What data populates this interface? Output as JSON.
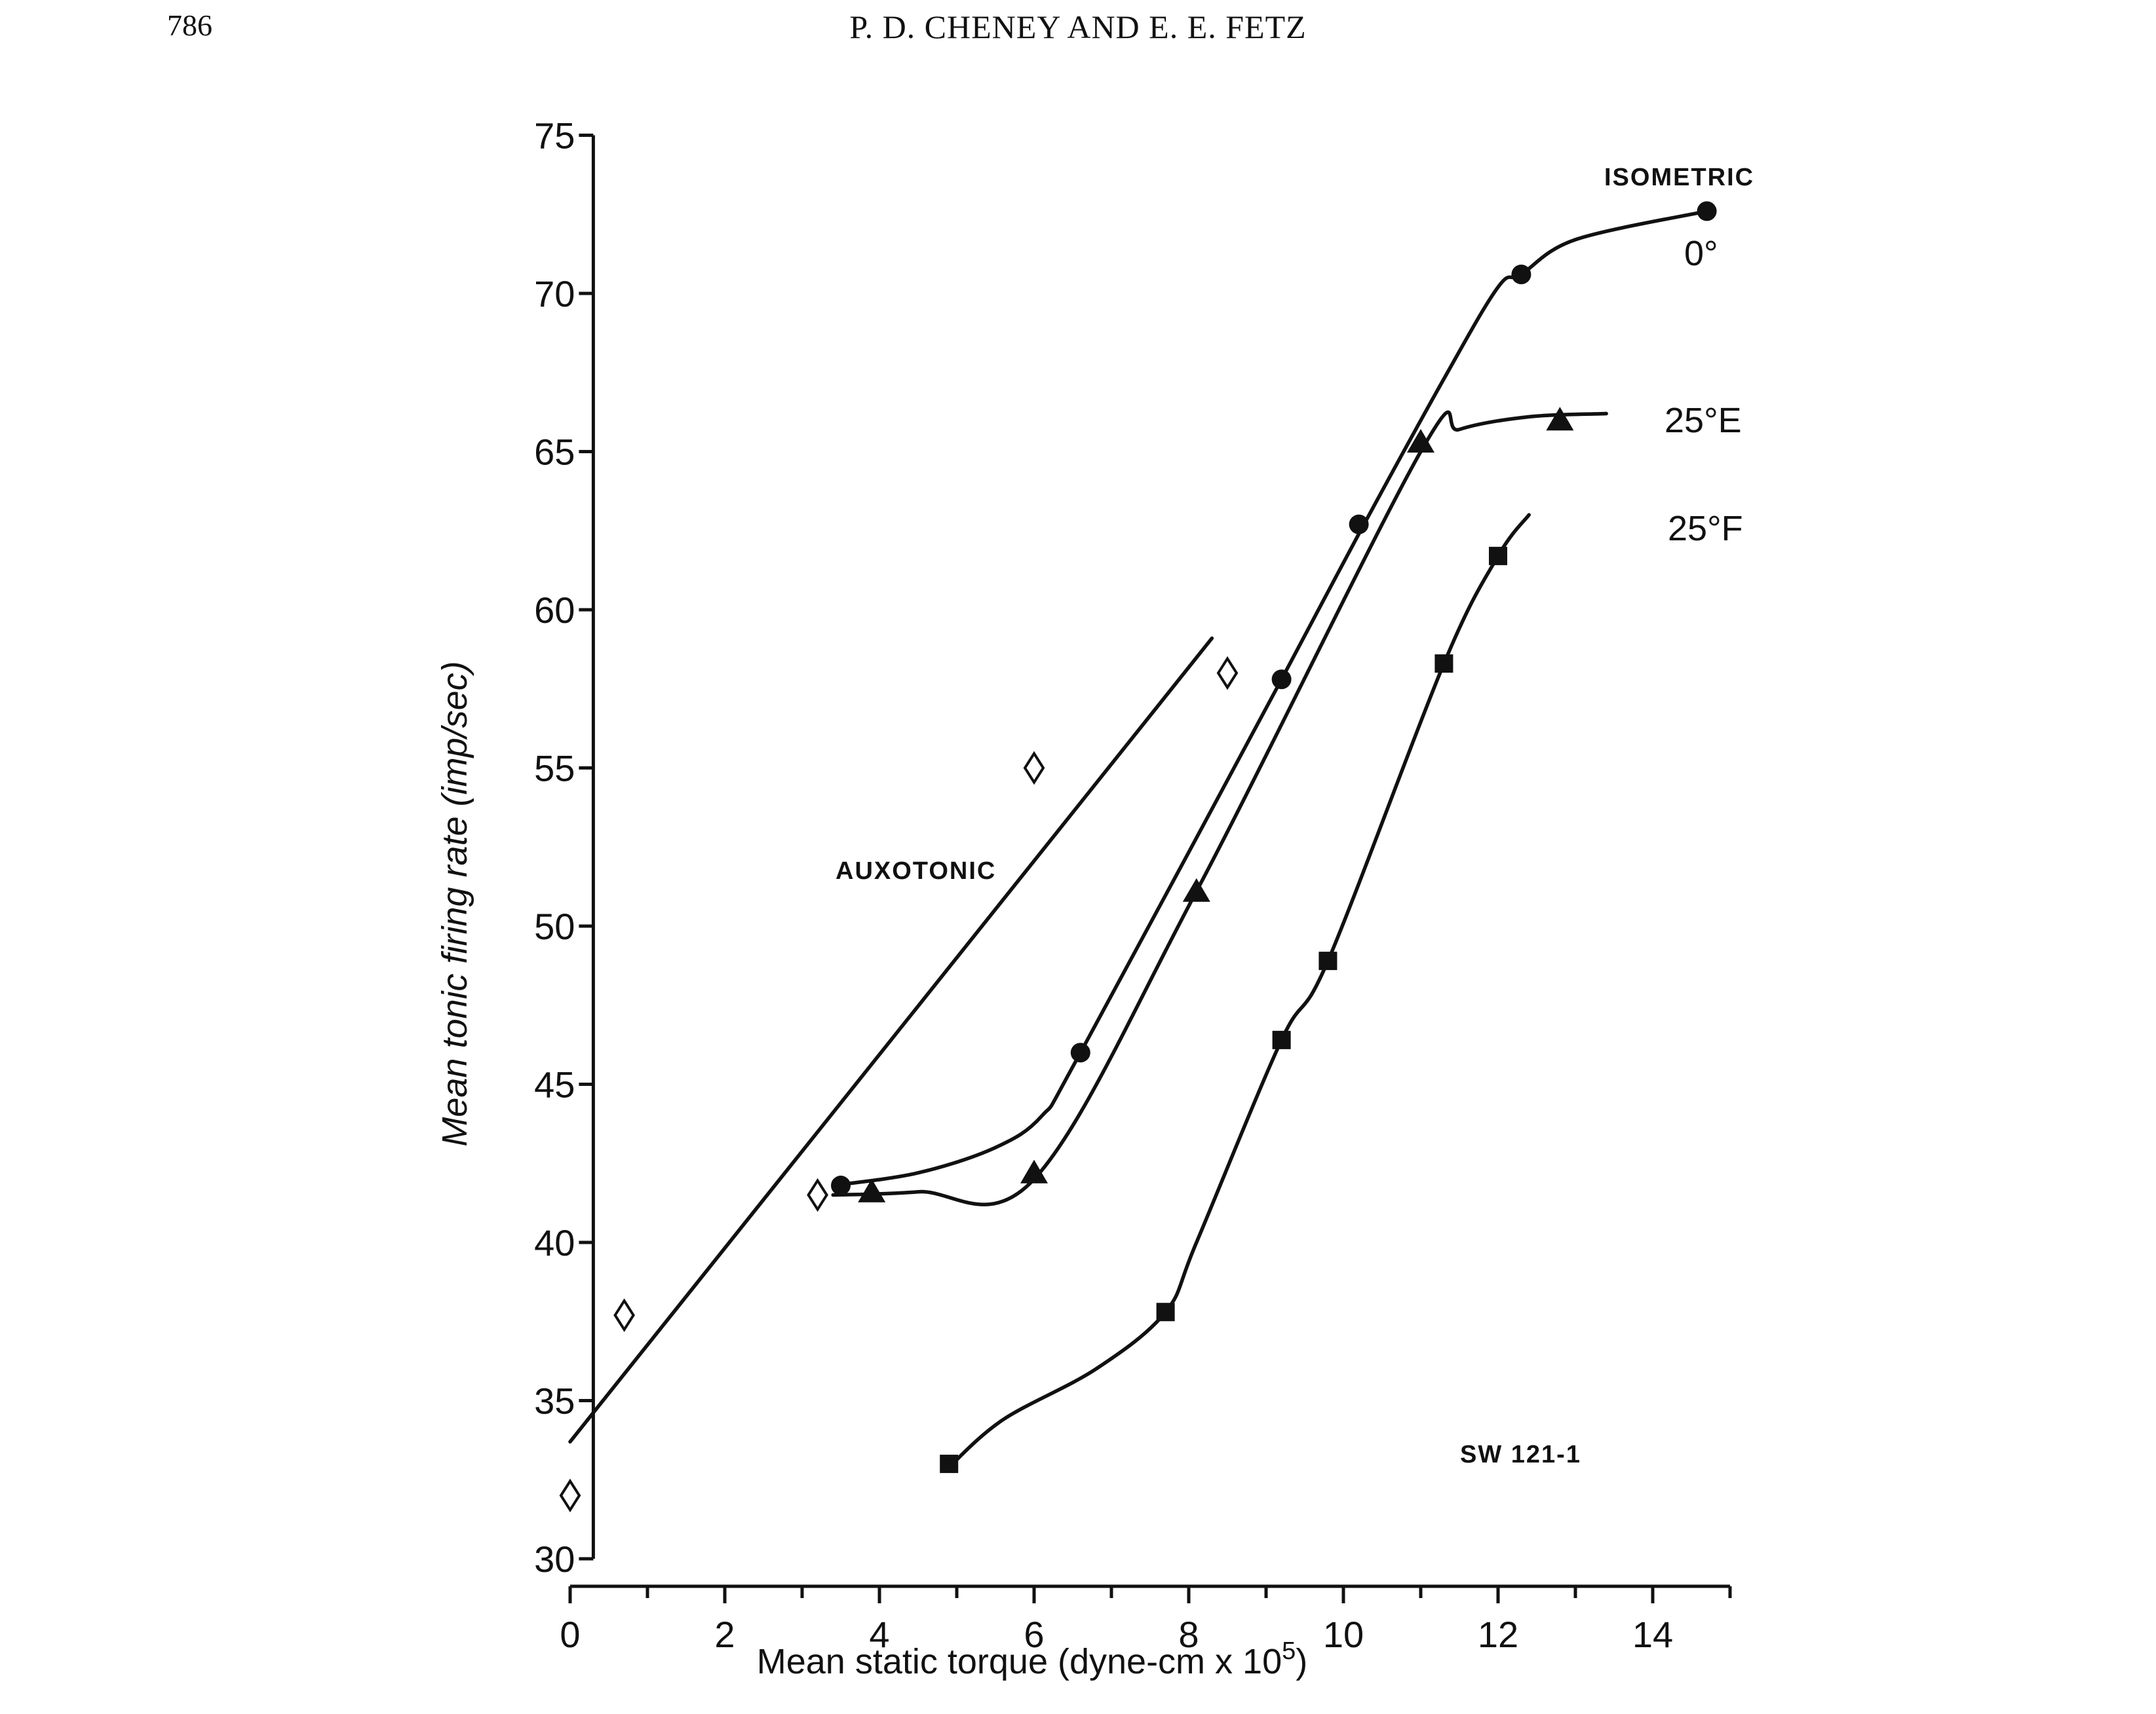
{
  "header": {
    "page_number": "786",
    "running_head": "P. D. CHENEY AND E. E. FETZ"
  },
  "chart_data": {
    "type": "scatter",
    "title": "",
    "xlabel": "Mean static torque   (dyne-cm x 10",
    "xlabel_superscript": "5",
    "xlabel_close": ")",
    "ylabel": "Mean tonic firing rate   (imp/sec)",
    "xlim": [
      0,
      15
    ],
    "ylim": [
      30,
      75
    ],
    "x_ticks": [
      0,
      2,
      4,
      6,
      8,
      10,
      12,
      14
    ],
    "y_ticks": [
      30,
      35,
      40,
      45,
      50,
      55,
      60,
      65,
      70,
      75
    ],
    "grid": false,
    "annotations": {
      "isometric": "ISOMETRIC",
      "auxotonic": "AUXOTONIC",
      "specimen": "SW 121-1"
    },
    "series": [
      {
        "name": "0°",
        "marker": "circle",
        "color": "#111111",
        "points": [
          [
            3.5,
            41.8
          ],
          [
            6.6,
            46.0
          ],
          [
            9.2,
            57.8
          ],
          [
            10.2,
            62.7
          ],
          [
            12.3,
            70.6
          ],
          [
            14.7,
            72.6
          ]
        ],
        "curve": [
          [
            3.4,
            41.8
          ],
          [
            4.5,
            42.2
          ],
          [
            5.5,
            43.0
          ],
          [
            6.1,
            44.0
          ],
          [
            6.6,
            46.0
          ],
          [
            9.2,
            57.8
          ],
          [
            10.2,
            62.4
          ],
          [
            11.3,
            67.3
          ],
          [
            12.0,
            70.2
          ],
          [
            12.3,
            70.6
          ],
          [
            13.0,
            71.7
          ],
          [
            14.7,
            72.6
          ]
        ]
      },
      {
        "name": "25°E",
        "marker": "triangle",
        "color": "#111111",
        "points": [
          [
            3.9,
            41.6
          ],
          [
            6.0,
            42.2
          ],
          [
            8.1,
            51.1
          ],
          [
            11.0,
            65.3
          ],
          [
            12.8,
            66.0
          ]
        ],
        "curve": [
          [
            3.4,
            41.5
          ],
          [
            4.5,
            41.6
          ],
          [
            6.0,
            42.0
          ],
          [
            8.1,
            51.1
          ],
          [
            11.0,
            65.0
          ],
          [
            11.5,
            65.7
          ],
          [
            12.4,
            66.1
          ],
          [
            13.4,
            66.2
          ]
        ]
      },
      {
        "name": "25°F",
        "marker": "square",
        "color": "#111111",
        "points": [
          [
            4.9,
            33.0
          ],
          [
            7.7,
            37.8
          ],
          [
            9.2,
            46.4
          ],
          [
            9.8,
            48.9
          ],
          [
            11.3,
            58.3
          ],
          [
            12.0,
            61.7
          ]
        ],
        "curve": [
          [
            4.9,
            32.9
          ],
          [
            5.6,
            34.4
          ],
          [
            6.8,
            36.0
          ],
          [
            7.7,
            37.8
          ],
          [
            8.1,
            40.0
          ],
          [
            9.2,
            46.4
          ],
          [
            9.8,
            48.9
          ],
          [
            11.3,
            58.3
          ],
          [
            12.0,
            61.7
          ],
          [
            12.4,
            63.0
          ]
        ]
      },
      {
        "name": "AUXOTONIC",
        "marker": "diamond-open",
        "color": "#111111",
        "points": [
          [
            0.0,
            32.0
          ],
          [
            0.7,
            37.7
          ],
          [
            3.2,
            41.5
          ],
          [
            6.0,
            55.0
          ],
          [
            8.5,
            58.0
          ]
        ],
        "curve": [
          [
            0.0,
            33.7
          ],
          [
            8.3,
            59.1
          ]
        ]
      }
    ]
  }
}
